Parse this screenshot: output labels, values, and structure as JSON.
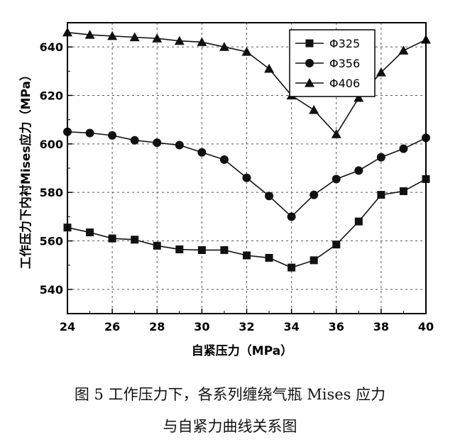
{
  "chart_data": {
    "type": "line",
    "xlabel": "自紧压力（MPa）",
    "ylabel": "工作压力下内衬Mises应力（MPa）",
    "xlim": [
      24,
      40
    ],
    "ylim": [
      530,
      650
    ],
    "x_ticks": [
      "24",
      "26",
      "28",
      "30",
      "32",
      "34",
      "36",
      "38",
      "40"
    ],
    "y_ticks": [
      "540",
      "560",
      "580",
      "600",
      "620",
      "640"
    ],
    "x": [
      24,
      25,
      26,
      27,
      28,
      29,
      30,
      31,
      32,
      33,
      34,
      35,
      36,
      37,
      38,
      39,
      40
    ],
    "legend_position": "top-right",
    "series": [
      {
        "name": "Φ325",
        "marker": "square",
        "values": [
          565.5,
          563.5,
          561,
          560.5,
          558,
          556.5,
          556.2,
          556.2,
          554,
          553,
          549,
          552,
          558.5,
          568,
          579,
          580.5,
          585.5
        ]
      },
      {
        "name": "Φ356",
        "marker": "circle",
        "values": [
          605,
          604.5,
          603.5,
          601.5,
          600.5,
          599.5,
          596.5,
          593.5,
          586,
          578.5,
          570,
          579,
          585.5,
          589,
          594.5,
          598,
          602.5
        ]
      },
      {
        "name": "Φ406",
        "marker": "triangle",
        "values": [
          646,
          645,
          644.5,
          644,
          643.5,
          642.5,
          642,
          640,
          638,
          631,
          620,
          614,
          604,
          619,
          629.5,
          638.5,
          643
        ]
      }
    ]
  },
  "caption": {
    "line1": "图 5   工作压力下，各系列缠绕气瓶 Mises 应力",
    "line2": "与自紧力曲线关系图"
  }
}
